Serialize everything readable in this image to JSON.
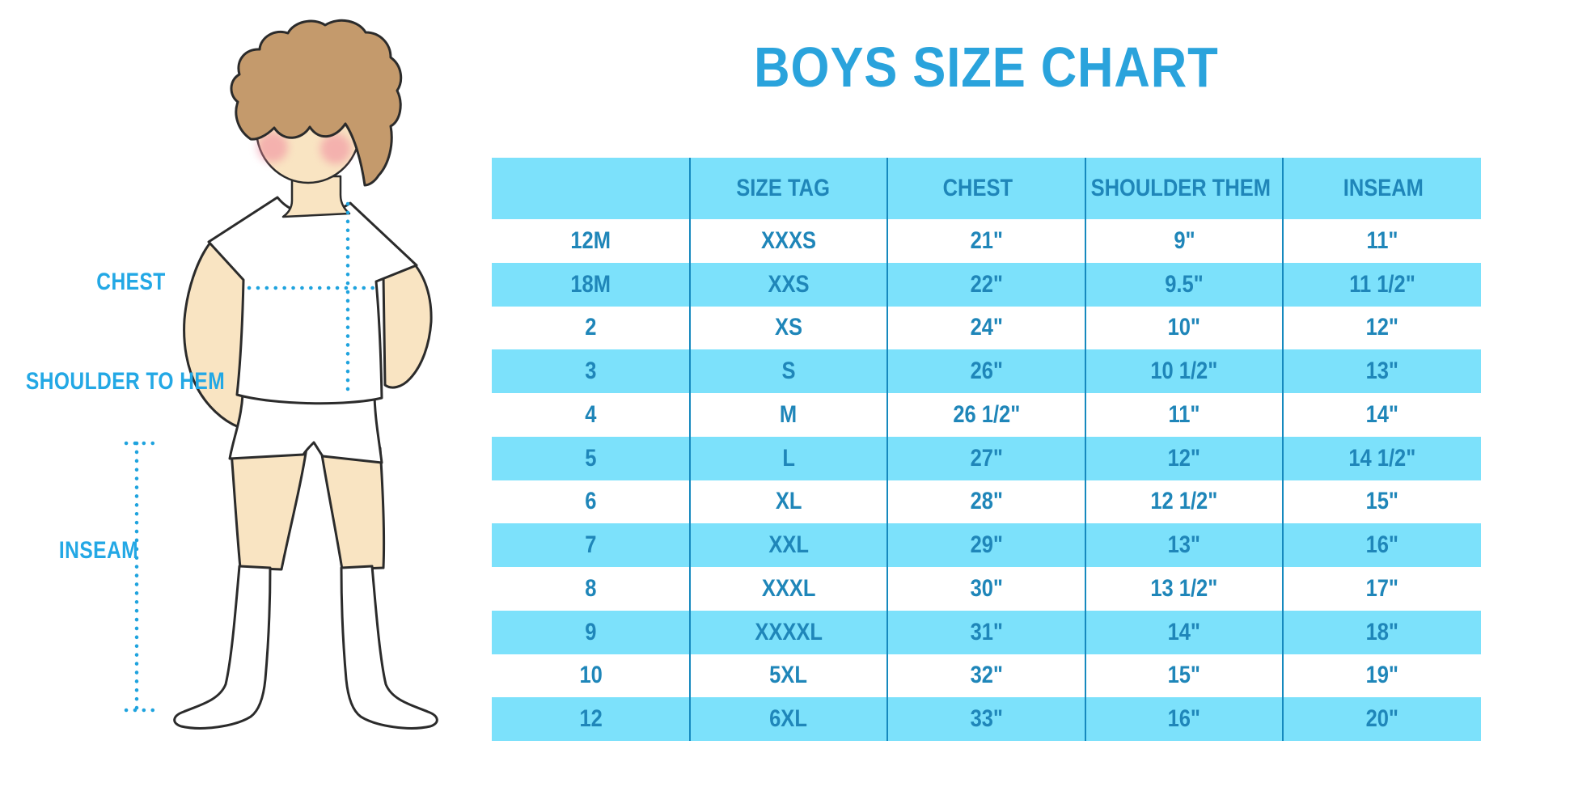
{
  "title": "BOYS SIZE CHART",
  "diagram": {
    "labels": {
      "chest": "CHEST",
      "shoulder_to_hem": "SHOULDER TO HEM",
      "inseam": "INSEAM"
    }
  },
  "chart_data": {
    "type": "table",
    "title": "BOYS SIZE CHART",
    "columns": [
      "",
      "SIZE TAG",
      "CHEST",
      "SHOULDER THEM",
      "INSEAM"
    ],
    "rows": [
      [
        "12M",
        "XXXS",
        "21\"",
        "9\"",
        "11\""
      ],
      [
        "18M",
        "XXS",
        "22\"",
        "9.5\"",
        "11 1/2\""
      ],
      [
        "2",
        "XS",
        "24\"",
        "10\"",
        "12\""
      ],
      [
        "3",
        "S",
        "26\"",
        "10 1/2\"",
        "13\""
      ],
      [
        "4",
        "M",
        "26 1/2\"",
        "11\"",
        "14\""
      ],
      [
        "5",
        "L",
        "27\"",
        "12\"",
        "14 1/2\""
      ],
      [
        "6",
        "XL",
        "28\"",
        "12 1/2\"",
        "15\""
      ],
      [
        "7",
        "XXL",
        "29\"",
        "13\"",
        "16\""
      ],
      [
        "8",
        "XXXL",
        "30\"",
        "13 1/2\"",
        "17\""
      ],
      [
        "9",
        "XXXXL",
        "31\"",
        "14\"",
        "18\""
      ],
      [
        "10",
        "5XL",
        "32\"",
        "15\"",
        "19\""
      ],
      [
        "12",
        "6XL",
        "33\"",
        "16\"",
        "20\""
      ]
    ],
    "layout": {
      "stripe_pattern": "header and every second data row light blue, starting with row 18M",
      "grid": "4 vertical dividers, no outer border"
    }
  },
  "colors": {
    "title_blue": "#2AA3DC",
    "label_blue": "#23A8E5",
    "dotted_line_blue": "#1FA3DE",
    "stripe_blue": "#7CE1FB",
    "table_text_blue": "#1F86B9",
    "divider_blue": "#1689BE",
    "skin": "#F9E4C2",
    "hair_brown": "#C49A6C",
    "cheek_pink": "#F0889E"
  }
}
